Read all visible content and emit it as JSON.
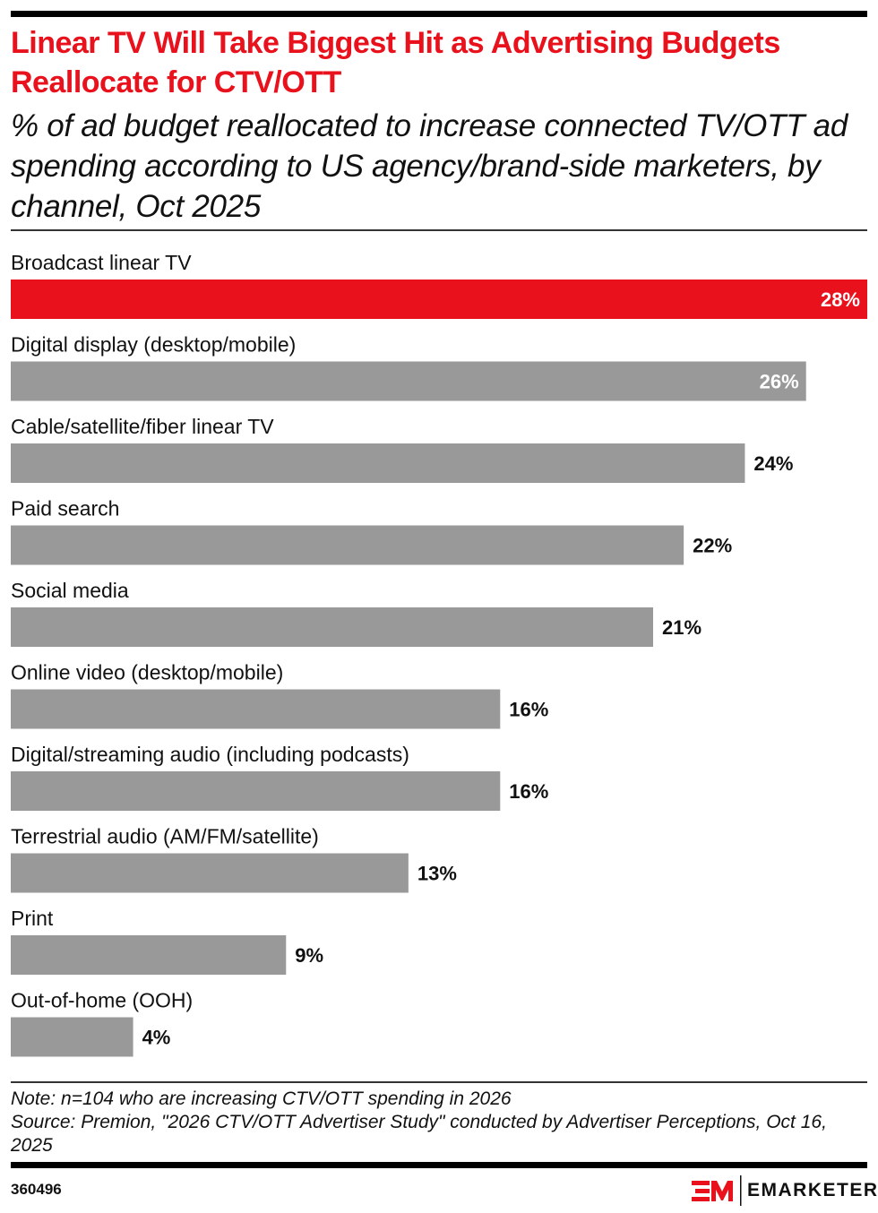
{
  "header": {
    "title": "Linear TV Will Take Biggest Hit as Advertising Budgets Reallocate for CTV/OTT",
    "subtitle": "% of ad budget reallocated to increase connected TV/OTT ad spending according to US agency/brand-side marketers, by channel, Oct 2025"
  },
  "colors": {
    "highlight": "#e8111c",
    "bar": "#999999",
    "text": "#111111"
  },
  "chart_data": {
    "type": "bar",
    "orientation": "horizontal",
    "title": "Linear TV Will Take Biggest Hit as Advertising Budgets Reallocate for CTV/OTT",
    "subtitle": "% of ad budget reallocated to increase connected TV/OTT ad spending according to US agency/brand-side marketers, by channel, Oct 2025",
    "xlabel": "",
    "ylabel": "",
    "unit": "%",
    "xlim": [
      0,
      28
    ],
    "grid": false,
    "categories": [
      "Broadcast linear TV",
      "Digital display (desktop/mobile)",
      "Cable/satellite/fiber linear TV",
      "Paid search",
      "Social media",
      "Online video (desktop/mobile)",
      "Digital/streaming audio (including podcasts)",
      "Terrestrial audio (AM/FM/satellite)",
      "Print",
      "Out-of-home (OOH)"
    ],
    "values": [
      28,
      26,
      24,
      22,
      21,
      16,
      16,
      13,
      9,
      4
    ],
    "labels": [
      "28%",
      "26%",
      "24%",
      "22%",
      "21%",
      "16%",
      "16%",
      "13%",
      "9%",
      "4%"
    ],
    "highlight_index": 0
  },
  "footer": {
    "note": "Note: n=104 who are increasing CTV/OTT spending in 2026",
    "source": "Source: Premion, \"2026 CTV/OTT Advertiser Study\" conducted by Advertiser Perceptions, Oct 16, 2025",
    "chart_id": "360496",
    "brand": "EMARKETER"
  }
}
